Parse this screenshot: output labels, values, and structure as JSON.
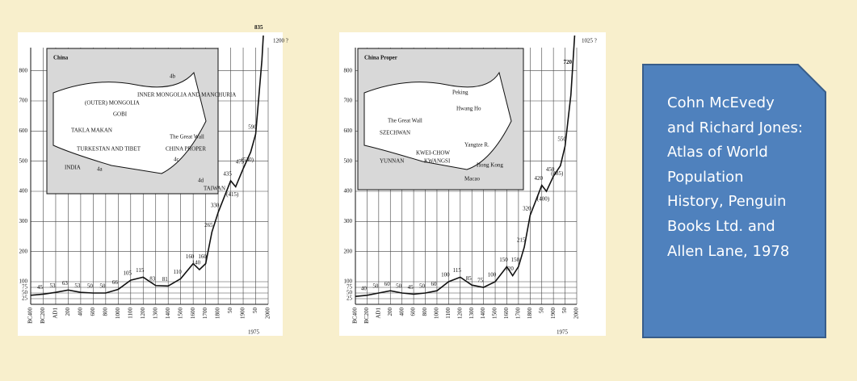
{
  "chart_data": [
    {
      "type": "line",
      "color": "#111111",
      "ylim": [
        0,
        850
      ],
      "yticks": [
        25,
        50,
        75,
        100,
        200,
        300,
        400,
        500,
        600,
        700,
        800
      ],
      "xticks": [
        {
          "value": -400,
          "label": "BC400"
        },
        {
          "value": -200,
          "label": "BC200"
        },
        {
          "value": 1,
          "label": "AD1"
        },
        200,
        400,
        600,
        800,
        1000,
        1100,
        1200,
        1300,
        1400,
        1500,
        1600,
        1700,
        1800,
        {
          "value": 1850,
          "label": "50"
        },
        1900,
        {
          "value": 1950,
          "label": "50"
        },
        2000
      ],
      "x_note": "1975",
      "x": [
        -400,
        -200,
        1,
        200,
        400,
        600,
        800,
        1000,
        1100,
        1200,
        1300,
        1400,
        1500,
        1600,
        1650,
        1700,
        1750,
        1800,
        1850,
        1870,
        1900,
        1930,
        1950,
        1975,
        2000
      ],
      "values": [
        40,
        45,
        53,
        63,
        53,
        50,
        50,
        66,
        105,
        115,
        83,
        81,
        110,
        160,
        140,
        160,
        265,
        330,
        435,
        415,
        475,
        530,
        590,
        835,
        1200
      ],
      "value_labels": [
        "",
        "45",
        "53",
        "63",
        "53",
        "50",
        "50",
        "66",
        "105",
        "115",
        "83",
        "81",
        "110",
        "160",
        "140",
        "160",
        "265",
        "330",
        "435",
        "(415)",
        "475",
        "(530)",
        "590",
        "835",
        "1200 ?"
      ],
      "inset": {
        "title": "China",
        "labels": [
          "(OUTER) MONGOLIA",
          "INNER MONGOLIA AND MANCHURIA",
          "GOBI",
          "TAKLA MAKAN",
          "TURKESTAN AND TIBET",
          "4a",
          "The Great Wall",
          "CHINA PROPER",
          "4c",
          "INDIA",
          "4b",
          "4d",
          "TAIWAN"
        ]
      }
    },
    {
      "type": "line",
      "color": "#111111",
      "ylim": [
        0,
        850
      ],
      "yticks": [
        25,
        50,
        75,
        100,
        200,
        300,
        400,
        500,
        600,
        700,
        800
      ],
      "xticks": [
        {
          "value": -400,
          "label": "BC400"
        },
        {
          "value": -200,
          "label": "BC200"
        },
        {
          "value": 1,
          "label": "AD1"
        },
        200,
        400,
        600,
        800,
        1000,
        1100,
        1200,
        1300,
        1400,
        1500,
        1600,
        1700,
        1800,
        {
          "value": 1850,
          "label": "50"
        },
        1900,
        {
          "value": 1950,
          "label": "50"
        },
        2000
      ],
      "x_note": "1975",
      "x": [
        -400,
        -200,
        1,
        200,
        400,
        600,
        800,
        1000,
        1100,
        1200,
        1300,
        1400,
        1500,
        1600,
        1650,
        1700,
        1750,
        1800,
        1850,
        1870,
        1900,
        1930,
        1950,
        1975,
        2000
      ],
      "values": [
        35,
        40,
        50,
        60,
        50,
        45,
        50,
        60,
        100,
        115,
        85,
        75,
        100,
        150,
        120,
        150,
        215,
        320,
        420,
        400,
        450,
        485,
        550,
        720,
        1025
      ],
      "value_labels": [
        "",
        "40",
        "50",
        "60",
        "50",
        "45",
        "50",
        "60",
        "100",
        "115",
        "85",
        "75",
        "100",
        "150",
        "120",
        "150",
        "215",
        "320",
        "420",
        "(400)",
        "450",
        "(485)",
        "550",
        "720",
        "1025 ?"
      ],
      "inset": {
        "title": "China Proper",
        "labels": [
          "Peking",
          "Hwang Ho",
          "The Great Wall",
          "SZECHWAN",
          "Yangtze R.",
          "KWEI-CHOW",
          "YUNNAN",
          "KWANGSI",
          "Hong Kong",
          "Macao"
        ]
      }
    }
  ],
  "note": "Cohn McEvedy and Richard Jones: Atlas of World Population History, Penguin Books Ltd. and Allen Lane, 1978"
}
